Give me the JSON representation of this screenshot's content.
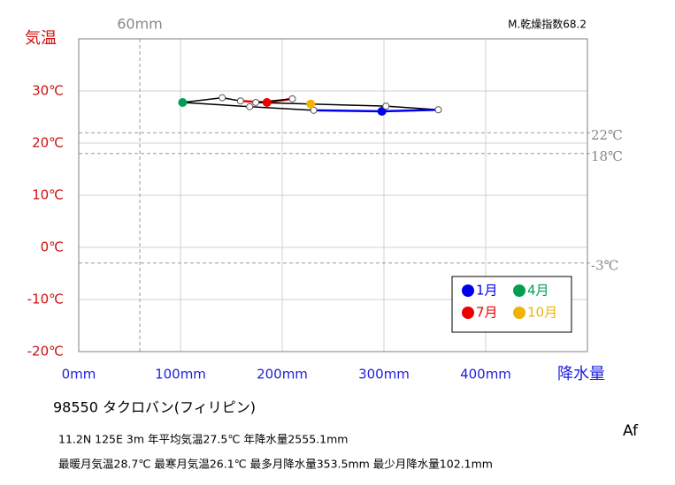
{
  "chart_data": {
    "type": "climograph",
    "title": "98550 タクロバン(フィリピン)",
    "info": [
      "11.2N 125E 3m 年平均気温27.5℃ 年降水量2555.1mm",
      "最暖月気温28.7℃ 最寒月気温26.1℃ 最多月降水量353.5mm 最少月降水量102.1mm"
    ],
    "climate_class": "Af",
    "aridity": "M.乾燥指数68.2",
    "y_label": "気温",
    "x_label": "降水量",
    "xlim": [
      0,
      500
    ],
    "ylim": [
      -20,
      40
    ],
    "xticks": [
      {
        "value": 0,
        "label": "0mm"
      },
      {
        "value": 100,
        "label": "100mm"
      },
      {
        "value": 200,
        "label": "200mm"
      },
      {
        "value": 300,
        "label": "300mm"
      },
      {
        "value": 400,
        "label": "400mm"
      }
    ],
    "yticks": [
      {
        "value": -20,
        "label": "-20℃"
      },
      {
        "value": -10,
        "label": "-10℃"
      },
      {
        "value": 0,
        "label": "0℃"
      },
      {
        "value": 10,
        "label": "10℃"
      },
      {
        "value": 20,
        "label": "20℃"
      },
      {
        "value": 30,
        "label": "30℃"
      }
    ],
    "x_refs": [
      {
        "value": 60,
        "label": "60mm"
      }
    ],
    "y_refs": [
      {
        "value": 22,
        "label": "22℃"
      },
      {
        "value": 18,
        "label": "18℃"
      },
      {
        "value": -3,
        "label": "-3℃"
      }
    ],
    "precipitation": [
      298,
      231,
      168,
      102.1,
      141,
      159,
      185,
      210,
      174,
      228,
      302,
      353.5
    ],
    "temperature": [
      26.1,
      26.3,
      27.0,
      27.8,
      28.7,
      28.1,
      27.8,
      28.5,
      27.8,
      27.5,
      27.1,
      26.4
    ],
    "point_colors": [
      "#0000ee",
      "#ffffff",
      "#ffffff",
      "#00a050",
      "#ffffff",
      "#ffffff",
      "#ee0000",
      "#ffffff",
      "#ffffff",
      "#f0b400",
      "#ffffff",
      "#ffffff"
    ],
    "segment_colors": [
      "#0000ee",
      "#000000",
      "#000000",
      "#000000",
      "#000000",
      "#ee0000",
      "#ee0000",
      "#000000",
      "#000000",
      "#000000",
      "#000000",
      "#0000ee"
    ],
    "legend": [
      {
        "name": "1月",
        "color": "#0000ee"
      },
      {
        "name": "4月",
        "color": "#00a050"
      },
      {
        "name": "7月",
        "color": "#ee0000"
      },
      {
        "name": "10月",
        "color": "#f0b400"
      }
    ]
  }
}
